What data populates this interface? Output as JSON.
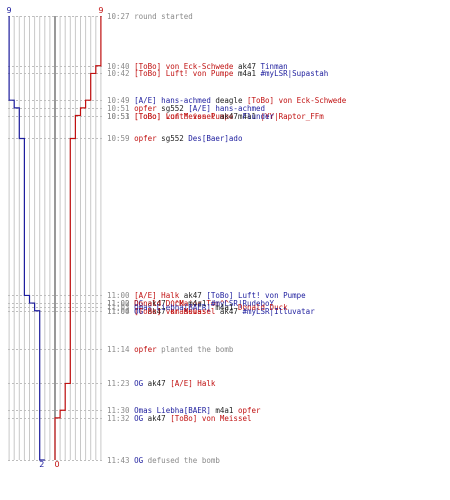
{
  "chart_data": {
    "type": "line",
    "ylim": [
      10.27,
      11.43
    ],
    "team_left": {
      "color": "#1e1e9e",
      "start_count": "9",
      "end_count": "2"
    },
    "team_right": {
      "color": "#c01010",
      "start_count": "9",
      "end_count": "0"
    },
    "series": [
      {
        "team": "left",
        "color": "#1e1e9e",
        "steps": [
          {
            "y": 10.27,
            "alive": 9
          },
          {
            "y": 10.49,
            "alive": 8
          },
          {
            "y": 10.51,
            "alive": 7
          },
          {
            "y": 10.59,
            "alive": 6
          },
          {
            "y": 11.0,
            "alive": 5
          },
          {
            "y": 11.02,
            "alive": 4
          },
          {
            "y": 11.04,
            "alive": 3
          },
          {
            "y": 11.43,
            "alive": 2
          }
        ]
      },
      {
        "team": "right",
        "color": "#c01010",
        "steps": [
          {
            "y": 10.27,
            "alive": 9
          },
          {
            "y": 10.4,
            "alive": 8
          },
          {
            "y": 10.42,
            "alive": 7
          },
          {
            "y": 10.49,
            "alive": 6
          },
          {
            "y": 10.51,
            "alive": 5
          },
          {
            "y": 10.53,
            "alive": 4
          },
          {
            "y": 10.59,
            "alive": 3
          },
          {
            "y": 11.23,
            "alive": 2
          },
          {
            "y": 11.3,
            "alive": 1
          },
          {
            "y": 11.32,
            "alive": 0
          },
          {
            "y": 11.43,
            "alive": 0
          }
        ]
      }
    ],
    "events": [
      {
        "time": "10:27",
        "y": 10.27,
        "parts": [
          [
            "round started",
            "gray"
          ]
        ]
      },
      {
        "time": "10:40",
        "y": 10.4,
        "parts": [
          [
            "[ToBo] von Eck-Schwede",
            "red"
          ],
          [
            " ak47 ",
            "dark"
          ],
          [
            "Tinman",
            "blue"
          ]
        ]
      },
      {
        "time": "10:42",
        "y": 10.42,
        "parts": [
          [
            "[ToBo] Luft! von Pumpe",
            "red"
          ],
          [
            " m4a1 ",
            "dark"
          ],
          [
            "#myLSR|Supastah",
            "blue"
          ]
        ]
      },
      {
        "time": "10:49",
        "y": 10.49,
        "parts": [
          [
            "[A/E] hans-achmed",
            "blue"
          ],
          [
            " deagle ",
            "dark"
          ],
          [
            "[ToBo] von Eck-Schwede",
            "red"
          ]
        ]
      },
      {
        "time": "10:51",
        "y": 10.51,
        "parts": [
          [
            "opfer",
            "red"
          ],
          [
            " sg552 ",
            "dark"
          ],
          [
            "[A/E] hans-achmed",
            "blue"
          ]
        ]
      },
      {
        "time": "10:51",
        "y": 10.51,
        "parts": [
          [
            "[ToBo] Luft! von Pumpe",
            "red"
          ],
          [
            " m4a1 ",
            "dark"
          ],
          [
            "|YY|Raptor_FFm",
            "red"
          ]
        ]
      },
      {
        "time": "10:53",
        "y": 10.53,
        "parts": [
          [
            "[ToBo] von Meissel",
            "red"
          ],
          [
            " ak47 ",
            "dark"
          ],
          [
            "Flunder",
            "blue"
          ]
        ]
      },
      {
        "time": "10:59",
        "y": 10.59,
        "parts": [
          [
            "opfer",
            "red"
          ],
          [
            " sg552 ",
            "dark"
          ],
          [
            "Des[Baer]ado",
            "blue"
          ]
        ]
      },
      {
        "time": "11:00",
        "y": 11.0,
        "parts": [
          [
            "[A/E] Halk",
            "red"
          ],
          [
            " ak47 ",
            "dark"
          ],
          [
            "[ToBo] Luft! von Pumpe",
            "blue"
          ]
        ]
      },
      {
        "time": "11:00",
        "y": 11.0,
        "parts": [
          [
            "OG",
            "blue"
          ],
          [
            " ak47 ",
            "dark"
          ],
          [
            "^^Major Tom^^",
            "red"
          ]
        ]
      },
      {
        "time": "11:00",
        "y": 11.0,
        "parts": [
          [
            "OG",
            "blue"
          ],
          [
            " ak47 ",
            "dark"
          ],
          [
            "krasswas",
            "red"
          ]
        ]
      },
      {
        "time": "11:02",
        "y": 11.02,
        "parts": [
          [
            "Donald Duck",
            "red"
          ],
          [
            " m4a1 ",
            "dark"
          ],
          [
            "#myLSR|RudeboY",
            "blue"
          ]
        ]
      },
      {
        "time": "11:03",
        "y": 11.03,
        "parts": [
          [
            "Omas Liebha[BAER]",
            "blue"
          ],
          [
            " m4a1 ",
            "dark"
          ],
          [
            "Donald Duck",
            "red"
          ]
        ]
      },
      {
        "time": "11:04",
        "y": 11.04,
        "parts": [
          [
            "[ToBo] von Meissel",
            "red"
          ],
          [
            " ak47 ",
            "dark"
          ],
          [
            "#myLSR|Illuvatar",
            "blue"
          ]
        ]
      },
      {
        "time": "11:14",
        "y": 11.14,
        "parts": [
          [
            "opfer",
            "red"
          ],
          [
            " planted the bomb",
            "gray"
          ]
        ]
      },
      {
        "time": "11:23",
        "y": 11.23,
        "parts": [
          [
            "OG",
            "blue"
          ],
          [
            " ak47 ",
            "dark"
          ],
          [
            "[A/E] Halk",
            "red"
          ]
        ]
      },
      {
        "time": "11:30",
        "y": 11.3,
        "parts": [
          [
            "Omas Liebha[BAER]",
            "blue"
          ],
          [
            " m4a1 ",
            "dark"
          ],
          [
            "opfer",
            "red"
          ]
        ]
      },
      {
        "time": "11:32",
        "y": 11.32,
        "parts": [
          [
            "OG",
            "blue"
          ],
          [
            " ak47 ",
            "dark"
          ],
          [
            "[ToBo] von Meissel",
            "red"
          ]
        ]
      },
      {
        "time": "11:43",
        "y": 11.43,
        "parts": [
          [
            "OG",
            "blue"
          ],
          [
            " defused the bomb",
            "gray"
          ]
        ]
      }
    ]
  }
}
